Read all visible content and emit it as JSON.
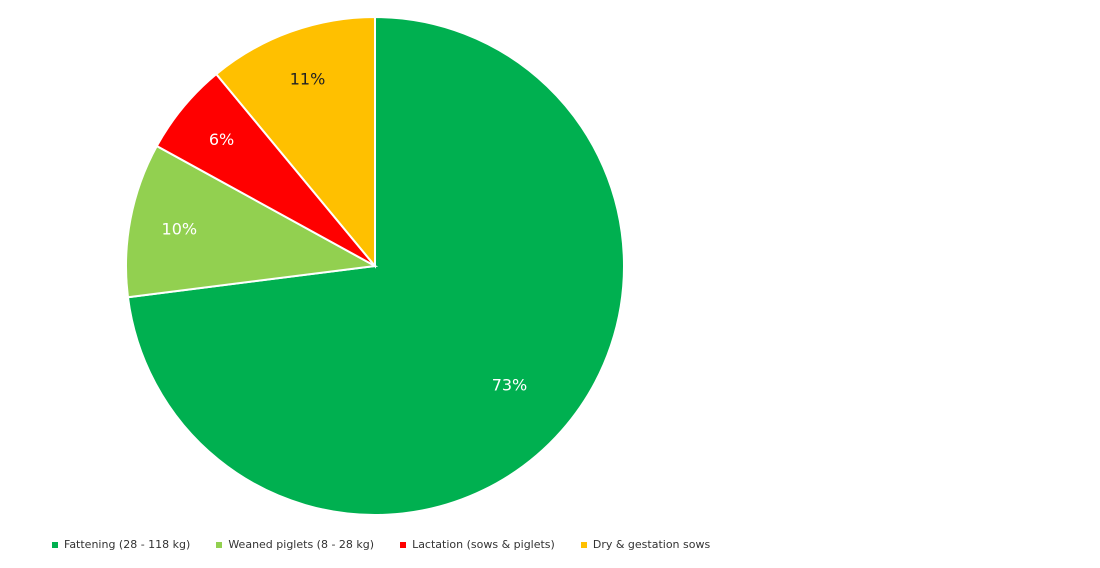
{
  "chart_data": {
    "type": "pie",
    "start_angle": "top",
    "direction": "clockwise",
    "legend_position": "bottom-left",
    "slices": [
      {
        "name": "Fattening (28 - 118 kg)",
        "value": 73,
        "label": "73%",
        "color": "#00b050",
        "label_color": "#ffffff"
      },
      {
        "name": "Weaned piglets (8 - 28 kg)",
        "value": 10,
        "label": "10%",
        "color": "#92d050",
        "label_color": "#ffffff"
      },
      {
        "name": "Lactation (sows & piglets)",
        "value": 6,
        "label": "6%",
        "color": "#ff0000",
        "label_color": "#ffffff"
      },
      {
        "name": "Dry & gestation sows",
        "value": 11,
        "label": "11%",
        "color": "#ffc000",
        "label_color": "#222222"
      }
    ]
  }
}
